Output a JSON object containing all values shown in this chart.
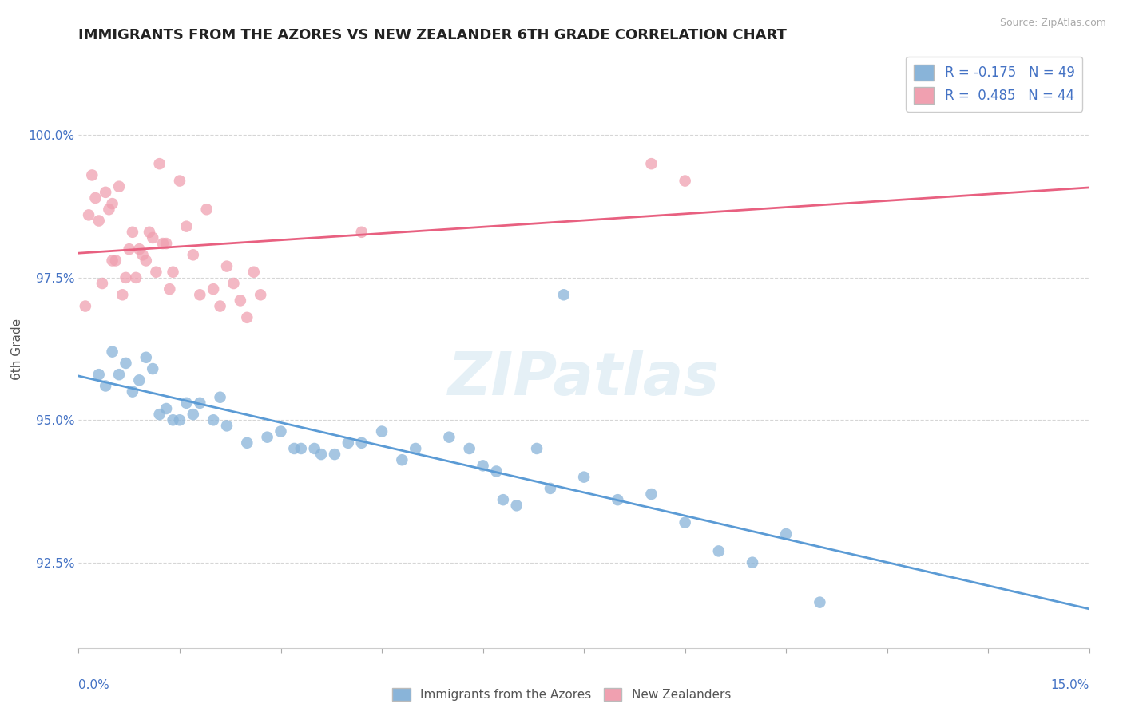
{
  "title": "IMMIGRANTS FROM THE AZORES VS NEW ZEALANDER 6TH GRADE CORRELATION CHART",
  "source": "Source: ZipAtlas.com",
  "ylabel": "6th Grade",
  "xlim": [
    0.0,
    15.0
  ],
  "ylim": [
    91.0,
    101.5
  ],
  "yticks": [
    92.5,
    95.0,
    97.5,
    100.0
  ],
  "ytick_labels": [
    "92.5%",
    "95.0%",
    "97.5%",
    "100.0%"
  ],
  "blue_color": "#89b4d9",
  "pink_color": "#f0a0b0",
  "blue_line_color": "#5b9bd5",
  "pink_line_color": "#e86080",
  "R_blue": -0.175,
  "N_blue": 49,
  "R_pink": 0.485,
  "N_pink": 44,
  "legend_label_blue": "Immigrants from the Azores",
  "legend_label_pink": "New Zealanders",
  "watermark": "ZIPatlas",
  "blue_points_x": [
    1.2,
    1.5,
    1.8,
    2.1,
    0.5,
    0.6,
    0.7,
    0.8,
    0.9,
    1.0,
    1.1,
    1.3,
    1.4,
    1.6,
    1.7,
    2.5,
    2.8,
    3.0,
    3.2,
    4.5,
    4.8,
    5.5,
    6.0,
    6.2,
    0.3,
    0.4,
    2.0,
    2.2,
    3.5,
    3.8,
    4.0,
    5.0,
    6.5,
    7.0,
    7.5,
    8.0,
    8.5,
    9.0,
    9.5,
    10.0,
    10.5,
    11.0,
    7.2,
    6.8,
    3.3,
    3.6,
    4.2,
    5.8,
    6.3
  ],
  "blue_points_y": [
    95.1,
    95.0,
    95.3,
    95.4,
    96.2,
    95.8,
    96.0,
    95.5,
    95.7,
    96.1,
    95.9,
    95.2,
    95.0,
    95.3,
    95.1,
    94.6,
    94.7,
    94.8,
    94.5,
    94.8,
    94.3,
    94.7,
    94.2,
    94.1,
    95.8,
    95.6,
    95.0,
    94.9,
    94.5,
    94.4,
    94.6,
    94.5,
    93.5,
    93.8,
    94.0,
    93.6,
    93.7,
    93.2,
    92.7,
    92.5,
    93.0,
    91.8,
    97.2,
    94.5,
    94.5,
    94.4,
    94.6,
    94.5,
    93.6
  ],
  "pink_points_x": [
    0.2,
    0.3,
    0.4,
    0.5,
    0.6,
    0.7,
    0.8,
    0.9,
    1.0,
    1.1,
    1.2,
    1.3,
    1.4,
    1.5,
    1.6,
    1.7,
    1.8,
    1.9,
    2.0,
    2.1,
    2.2,
    2.3,
    2.4,
    2.5,
    2.6,
    2.7,
    0.15,
    0.25,
    0.35,
    0.45,
    0.55,
    0.65,
    0.75,
    0.85,
    0.95,
    1.05,
    1.15,
    1.25,
    1.35,
    4.2,
    8.5,
    9.0,
    0.1,
    0.5
  ],
  "pink_points_y": [
    99.3,
    98.5,
    99.0,
    98.8,
    99.1,
    97.5,
    98.3,
    98.0,
    97.8,
    98.2,
    99.5,
    98.1,
    97.6,
    99.2,
    98.4,
    97.9,
    97.2,
    98.7,
    97.3,
    97.0,
    97.7,
    97.4,
    97.1,
    96.8,
    97.6,
    97.2,
    98.6,
    98.9,
    97.4,
    98.7,
    97.8,
    97.2,
    98.0,
    97.5,
    97.9,
    98.3,
    97.6,
    98.1,
    97.3,
    98.3,
    99.5,
    99.2,
    97.0,
    97.8
  ]
}
